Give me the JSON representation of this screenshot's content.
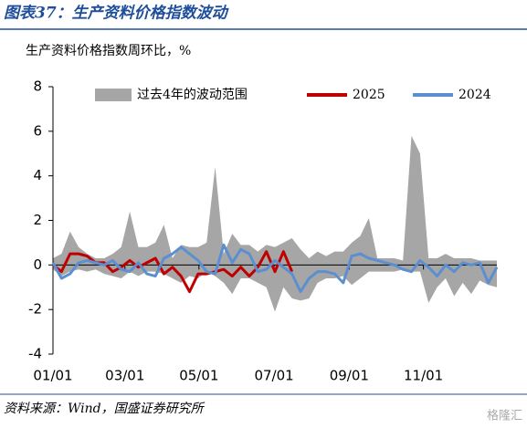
{
  "header": {
    "title": "图表37：生产资料价格指数波动"
  },
  "chart_data": {
    "type": "line",
    "subtitle": "生产资料价格指数周环比，%",
    "x": [
      0,
      1,
      2,
      3,
      4,
      5,
      6,
      7,
      8,
      9,
      10,
      11,
      12,
      13,
      14,
      15,
      16,
      17,
      18,
      19,
      20,
      21,
      22,
      23,
      24,
      25,
      26,
      27,
      28,
      29,
      30,
      31,
      32,
      33,
      34,
      35,
      36,
      37,
      38,
      39,
      40,
      41,
      42,
      43,
      44,
      45,
      46,
      47,
      48,
      49,
      50,
      51,
      52
    ],
    "xlim": [
      0,
      52
    ],
    "xticks": [
      {
        "value": 0,
        "label": "01/01"
      },
      {
        "value": 8.43,
        "label": "03/01"
      },
      {
        "value": 17.1,
        "label": "05/01"
      },
      {
        "value": 25.9,
        "label": "07/01"
      },
      {
        "value": 34.7,
        "label": "09/01"
      },
      {
        "value": 43.4,
        "label": "11/01"
      }
    ],
    "ylim": [
      -4,
      8
    ],
    "yticks": [
      -4,
      -2,
      0,
      2,
      4,
      6,
      8
    ],
    "band": {
      "name": "过去4年的波动范围",
      "color": "#a6a6a6",
      "upper": [
        0.3,
        0.5,
        1.5,
        0.8,
        0.5,
        0.3,
        0.3,
        0.5,
        0.8,
        2.4,
        0.8,
        0.8,
        1.0,
        1.8,
        0.3,
        0.9,
        0.8,
        0.8,
        1.0,
        4.4,
        0.5,
        1.4,
        0.9,
        0.9,
        0.6,
        0.9,
        0.8,
        1.0,
        1.2,
        0.7,
        0.3,
        0.6,
        0.4,
        0.6,
        0.6,
        1.0,
        1.3,
        2.1,
        0.3,
        0.3,
        0.3,
        0.2,
        5.8,
        5.0,
        0.3,
        0.3,
        0.5,
        0.3,
        0.3,
        0.3,
        0.2,
        0.2,
        0.2
      ],
      "lower": [
        -0.2,
        -0.5,
        -0.3,
        -0.2,
        -0.3,
        -0.2,
        -0.4,
        -0.5,
        -0.6,
        -0.3,
        -0.5,
        -0.3,
        -0.3,
        -0.4,
        -0.6,
        -0.8,
        -0.5,
        -0.6,
        -0.3,
        -0.5,
        -0.8,
        -1.3,
        -0.6,
        -0.6,
        -0.8,
        -1.0,
        -2.1,
        -1.0,
        -1.5,
        -1.6,
        -1.5,
        -0.8,
        -0.6,
        -0.6,
        -0.5,
        -0.9,
        -0.6,
        -0.3,
        -0.3,
        -0.3,
        -0.3,
        -0.2,
        -0.3,
        -0.3,
        -1.7,
        -1.0,
        -0.6,
        -1.4,
        -0.8,
        -1.3,
        -0.7,
        -0.9,
        -1.0
      ]
    },
    "series": [
      {
        "name": "2025",
        "color": "#c00000",
        "values": [
          0,
          -0.3,
          0.5,
          0.5,
          0.4,
          0.1,
          0.1,
          -0.3,
          -0.1,
          0.2,
          -0.1,
          0.1,
          0.3,
          -0.4,
          -0.1,
          -0.5,
          -1.2,
          -0.4,
          -0.4,
          -0.3,
          -0.2,
          -0.5,
          -0.1,
          -0.5,
          -0.1,
          0.6,
          -0.3,
          0.6,
          -0.3,
          null,
          null,
          null,
          null,
          null,
          null,
          null,
          null,
          null,
          null,
          null,
          null,
          null,
          null,
          null,
          null,
          null,
          null,
          null,
          null,
          null,
          null,
          null,
          null
        ]
      },
      {
        "name": "2024",
        "color": "#5b8fd0",
        "values": [
          0.1,
          -0.6,
          -0.4,
          0.1,
          0.2,
          0.1,
          0,
          0.2,
          -0.2,
          -0.3,
          0.1,
          -0.4,
          -0.5,
          0.3,
          0.5,
          0.8,
          0.5,
          0.2,
          -0.3,
          -0.4,
          0.9,
          0.1,
          0.7,
          0.5,
          -0.3,
          -0.2,
          0.2,
          -0.1,
          -0.4,
          -1.2,
          -0.6,
          -0.3,
          -0.3,
          -0.4,
          -0.8,
          0.4,
          0.5,
          0.3,
          0.2,
          0.1,
          0,
          -0.2,
          -0.3,
          0.2,
          -0.1,
          -0.5,
          0,
          -0.3,
          0.1,
          0,
          0.1,
          -0.8,
          -0.1
        ]
      }
    ]
  },
  "footer": {
    "source": "资料来源：Wind，国盛证券研究所",
    "watermark": "格隆汇"
  }
}
